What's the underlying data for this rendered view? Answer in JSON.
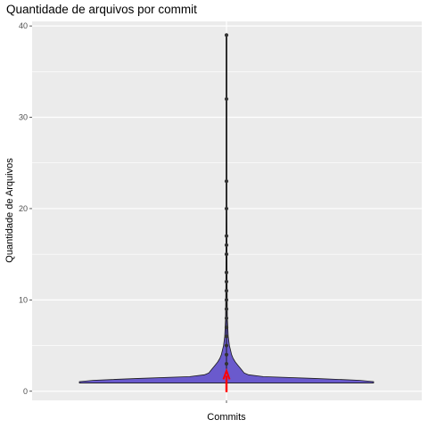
{
  "chart_data": {
    "type": "violin",
    "title": "Quantidade de arquivos por commit",
    "xlabel": "",
    "ylabel": "Quantidade de Arquivos",
    "categories": [
      "Commits"
    ],
    "ylim": [
      -1,
      40.5
    ],
    "yticks": [
      0,
      10,
      20,
      30,
      40
    ],
    "grid": true,
    "legend": "none",
    "colors": {
      "panel": "#ebebeb",
      "grid": "#ffffff",
      "violin_fill": "#6a5acd",
      "violin_stroke": "#1a1a1a",
      "points": "#333333",
      "median_marker": "#ff0000"
    },
    "median": 1,
    "outliers": [
      3,
      4,
      5,
      6,
      7,
      8,
      9,
      10,
      11,
      12,
      13,
      15,
      16,
      17,
      20,
      23,
      32,
      39
    ],
    "density_profile": [
      {
        "y": 0.9,
        "w": 1.0
      },
      {
        "y": 1.05,
        "w": 1.0
      },
      {
        "y": 1.2,
        "w": 0.9
      },
      {
        "y": 1.4,
        "w": 0.6
      },
      {
        "y": 1.6,
        "w": 0.25
      },
      {
        "y": 1.8,
        "w": 0.15
      },
      {
        "y": 2.0,
        "w": 0.12
      },
      {
        "y": 2.4,
        "w": 0.1
      },
      {
        "y": 2.8,
        "w": 0.08
      },
      {
        "y": 3.2,
        "w": 0.06
      },
      {
        "y": 3.6,
        "w": 0.045
      },
      {
        "y": 4.0,
        "w": 0.035
      },
      {
        "y": 5.0,
        "w": 0.02
      },
      {
        "y": 6.0,
        "w": 0.012
      },
      {
        "y": 8.0,
        "w": 0.006
      },
      {
        "y": 12.0,
        "w": 0.004
      },
      {
        "y": 20.0,
        "w": 0.003
      },
      {
        "y": 39.0,
        "w": 0.003
      }
    ]
  },
  "labels": {
    "category": "Commits"
  }
}
